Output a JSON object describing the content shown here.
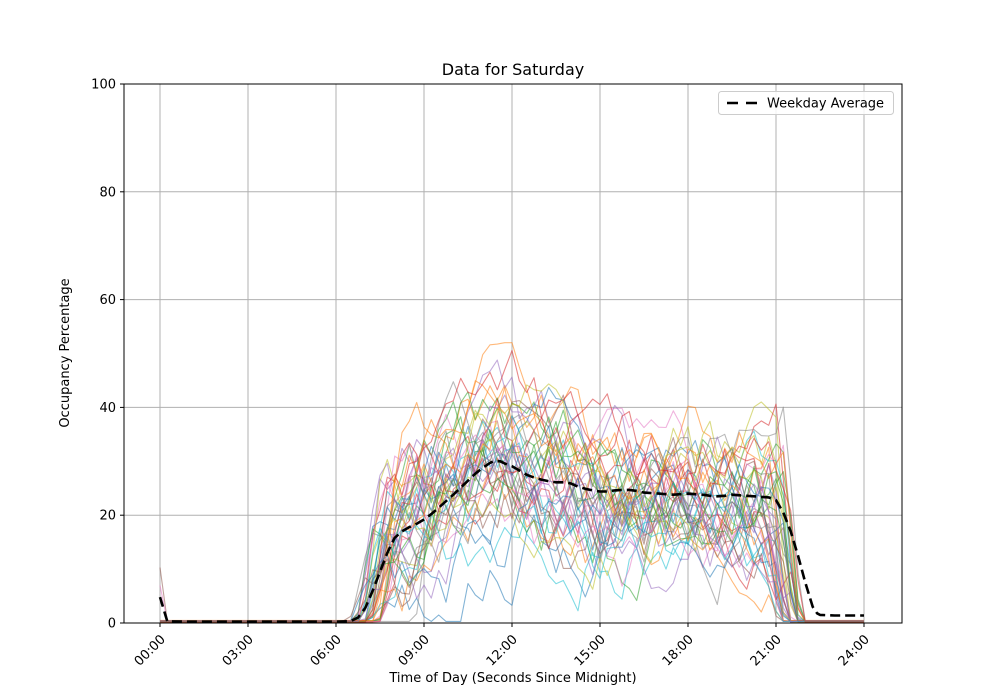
{
  "figure": {
    "background": "#ffffff"
  },
  "chart_data": {
    "type": "line",
    "title": "Data for Saturday",
    "xlabel": "Time of Day (Seconds Since Midnight)",
    "ylabel": "Occupancy Percentage",
    "grid": true,
    "grid_color": "#b0b0b0",
    "spine_color": "#000000",
    "legend": {
      "label": "Weekday Average",
      "position": "upper right",
      "edge_color": "#cccccc"
    },
    "x_axis": {
      "range_hours": [
        0,
        24
      ],
      "tick_hours": [
        0,
        3,
        6,
        9,
        12,
        15,
        18,
        21,
        24
      ],
      "tick_labels": [
        "00:00",
        "03:00",
        "06:00",
        "09:00",
        "12:00",
        "15:00",
        "18:00",
        "21:00",
        "24:00"
      ],
      "tick_label_rotation_deg": 45
    },
    "y_axis": {
      "range": [
        0,
        100
      ],
      "tick_values": [
        0,
        20,
        40,
        60,
        80,
        100
      ],
      "tick_labels": [
        "0",
        "20",
        "40",
        "60",
        "80",
        "100"
      ]
    },
    "average_series": {
      "name": "Weekday Average",
      "color": "#000000",
      "style": "dashed",
      "linewidth": 2.6,
      "points_hour_value": [
        [
          0,
          4.8
        ],
        [
          0.25,
          0.3
        ],
        [
          1,
          0.25
        ],
        [
          2,
          0.25
        ],
        [
          3,
          0.25
        ],
        [
          4,
          0.25
        ],
        [
          5,
          0.25
        ],
        [
          6,
          0.25
        ],
        [
          6.5,
          0.35
        ],
        [
          6.75,
          1
        ],
        [
          7,
          2.8
        ],
        [
          7.25,
          6
        ],
        [
          7.5,
          9.5
        ],
        [
          7.75,
          13
        ],
        [
          8,
          15.8
        ],
        [
          8.25,
          17
        ],
        [
          8.5,
          17.8
        ],
        [
          8.75,
          18.4
        ],
        [
          9,
          19.2
        ],
        [
          9.25,
          20.2
        ],
        [
          9.5,
          21.4
        ],
        [
          9.75,
          22.6
        ],
        [
          10,
          23.8
        ],
        [
          10.25,
          25.1
        ],
        [
          10.5,
          26.4
        ],
        [
          10.75,
          27.7
        ],
        [
          11,
          28.8
        ],
        [
          11.25,
          29.7
        ],
        [
          11.4,
          30.1
        ],
        [
          11.6,
          30
        ],
        [
          11.75,
          29.6
        ],
        [
          12,
          29.1
        ],
        [
          12.25,
          28.3
        ],
        [
          12.5,
          27.5
        ],
        [
          12.75,
          27
        ],
        [
          13,
          26.6
        ],
        [
          13.25,
          26.3
        ],
        [
          13.5,
          26.1
        ],
        [
          13.75,
          26.1
        ],
        [
          14,
          25.9
        ],
        [
          14.25,
          25.3
        ],
        [
          14.5,
          24.9
        ],
        [
          14.75,
          24.6
        ],
        [
          15,
          24.4
        ],
        [
          15.25,
          24.4
        ],
        [
          15.5,
          24.6
        ],
        [
          15.75,
          24.7
        ],
        [
          16,
          24.7
        ],
        [
          16.25,
          24.5
        ],
        [
          16.5,
          24.2
        ],
        [
          16.75,
          24.1
        ],
        [
          17,
          24
        ],
        [
          17.25,
          23.9
        ],
        [
          17.5,
          23.8
        ],
        [
          17.75,
          23.9
        ],
        [
          18,
          24
        ],
        [
          18.25,
          23.9
        ],
        [
          18.5,
          23.8
        ],
        [
          18.75,
          23.6
        ],
        [
          19,
          23.5
        ],
        [
          19.25,
          23.6
        ],
        [
          19.5,
          23.8
        ],
        [
          19.75,
          23.7
        ],
        [
          20,
          23.6
        ],
        [
          20.25,
          23.5
        ],
        [
          20.5,
          23.4
        ],
        [
          20.75,
          23.3
        ],
        [
          21,
          22.8
        ],
        [
          21.25,
          20.5
        ],
        [
          21.5,
          17
        ],
        [
          21.75,
          12.5
        ],
        [
          22,
          7.5
        ],
        [
          22.25,
          3
        ],
        [
          22.4,
          1.8
        ],
        [
          22.5,
          1.5
        ],
        [
          23,
          1.4
        ],
        [
          23.5,
          1.4
        ],
        [
          24,
          1.4
        ]
      ]
    },
    "traces": {
      "description": "Individual Saturday occupancy traces (semi-transparent random walks around the plateau envelope)",
      "count": 45,
      "colors": [
        "#1f77b4",
        "#ff7f0e",
        "#2ca02c",
        "#d62728",
        "#9467bd",
        "#8c564b",
        "#e377c2",
        "#7f7f7f",
        "#bcbd22",
        "#17becf"
      ],
      "alpha": 0.55,
      "linewidth": 1.1,
      "sample_step_hours": 0.25,
      "plateau_hour_value": [
        [
          8,
          19
        ],
        [
          9,
          20.5
        ],
        [
          10,
          24
        ],
        [
          11,
          29
        ],
        [
          11.5,
          30
        ],
        [
          12,
          29
        ],
        [
          13,
          26.5
        ],
        [
          14,
          26
        ],
        [
          15,
          24.5
        ],
        [
          16,
          24.5
        ],
        [
          17,
          24
        ],
        [
          18,
          24
        ],
        [
          19,
          23.5
        ],
        [
          20,
          23.5
        ],
        [
          21,
          23
        ],
        [
          22,
          23
        ]
      ],
      "open_hour_range": [
        6.35,
        7.5
      ],
      "close_hour_range": [
        21.15,
        22.05
      ],
      "scale_range": [
        0.72,
        1.32
      ],
      "baseline_range": [
        0.1,
        0.5
      ],
      "noise_step": 6.0,
      "noise_damping": 0.88,
      "noise_gain": 2.0,
      "value_cap": 52,
      "seed": 13,
      "late_opener": {
        "trace_index": 7,
        "open_hour": 8.6
      },
      "midnight_spikes": [
        {
          "trace_index": 5,
          "value": 10.3
        },
        {
          "trace_index": 6,
          "value": 7.0
        }
      ]
    }
  }
}
